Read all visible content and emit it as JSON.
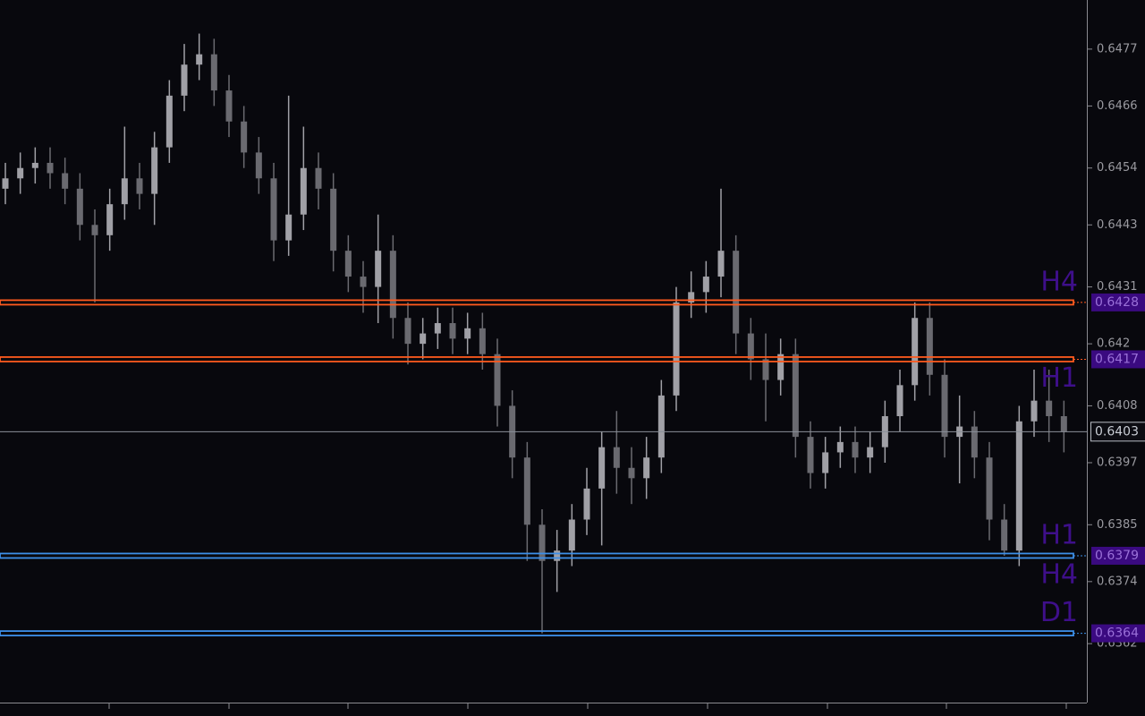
{
  "chart_data": {
    "type": "candlestick",
    "ylim": [
      0.63506,
      0.64865
    ],
    "yticks": [
      0.6477,
      0.6466,
      0.6454,
      0.6443,
      0.6431,
      0.642,
      0.6408,
      0.6397,
      0.6385,
      0.6374,
      0.6362
    ],
    "up_color": "#a0a0a6",
    "down_color": "#6a6a70",
    "open": [
      0.645,
      0.6452,
      0.6454,
      0.6455,
      0.6453,
      0.645,
      0.6443,
      0.6441,
      0.6447,
      0.6452,
      0.6449,
      0.6458,
      0.6468,
      0.6474,
      0.6476,
      0.6469,
      0.6463,
      0.6457,
      0.6452,
      0.644,
      0.6445,
      0.6454,
      0.645,
      0.6438,
      0.6433,
      0.6431,
      0.6438,
      0.6425,
      0.642,
      0.6422,
      0.6424,
      0.6421,
      0.6423,
      0.6418,
      0.6408,
      0.6398,
      0.6385,
      0.6378,
      0.638,
      0.6386,
      0.6392,
      0.64,
      0.6396,
      0.6394,
      0.6398,
      0.641,
      0.6428,
      0.643,
      0.6433,
      0.6438,
      0.6422,
      0.6417,
      0.6413,
      0.6418,
      0.6402,
      0.6395,
      0.6399,
      0.6401,
      0.6398,
      0.64,
      0.6406,
      0.6412,
      0.6425,
      0.6414,
      0.6402,
      0.6404,
      0.6398,
      0.6386,
      0.638,
      0.6405,
      0.6409,
      0.6406
    ],
    "high": [
      0.6455,
      0.6457,
      0.6458,
      0.6458,
      0.6456,
      0.6453,
      0.6446,
      0.645,
      0.6462,
      0.6455,
      0.6461,
      0.6471,
      0.6478,
      0.648,
      0.6479,
      0.6472,
      0.6466,
      0.646,
      0.6455,
      0.6468,
      0.6462,
      0.6457,
      0.6453,
      0.6441,
      0.6436,
      0.6445,
      0.6441,
      0.6428,
      0.6425,
      0.6427,
      0.6427,
      0.6426,
      0.6426,
      0.6421,
      0.6411,
      0.6401,
      0.6388,
      0.6384,
      0.6389,
      0.6396,
      0.6403,
      0.6407,
      0.64,
      0.6402,
      0.6413,
      0.6431,
      0.6434,
      0.6436,
      0.645,
      0.6441,
      0.6425,
      0.6422,
      0.6421,
      0.6421,
      0.6405,
      0.6402,
      0.6404,
      0.6404,
      0.6403,
      0.6409,
      0.6415,
      0.6428,
      0.6428,
      0.6417,
      0.641,
      0.6407,
      0.6401,
      0.6389,
      0.6408,
      0.6415,
      0.6415,
      0.6409
    ],
    "low": [
      0.6447,
      0.6449,
      0.6451,
      0.645,
      0.6447,
      0.644,
      0.6428,
      0.6438,
      0.6444,
      0.6446,
      0.6443,
      0.6455,
      0.6465,
      0.6471,
      0.6466,
      0.646,
      0.6454,
      0.6449,
      0.6436,
      0.6437,
      0.6442,
      0.6446,
      0.6434,
      0.643,
      0.6426,
      0.6424,
      0.6421,
      0.6416,
      0.6417,
      0.6419,
      0.6418,
      0.6418,
      0.6415,
      0.6404,
      0.6394,
      0.6378,
      0.6364,
      0.6372,
      0.6377,
      0.6383,
      0.6381,
      0.6391,
      0.6389,
      0.639,
      0.6395,
      0.6407,
      0.6425,
      0.6426,
      0.6429,
      0.6418,
      0.6413,
      0.6405,
      0.641,
      0.6398,
      0.6392,
      0.6392,
      0.6396,
      0.6395,
      0.6395,
      0.6397,
      0.6403,
      0.6409,
      0.641,
      0.6398,
      0.6393,
      0.6394,
      0.6382,
      0.6379,
      0.6377,
      0.6402,
      0.6401,
      0.6399
    ],
    "close": [
      0.6452,
      0.6454,
      0.6455,
      0.6453,
      0.645,
      0.6443,
      0.6441,
      0.6447,
      0.6452,
      0.6449,
      0.6458,
      0.6468,
      0.6474,
      0.6476,
      0.6469,
      0.6463,
      0.6457,
      0.6452,
      0.644,
      0.6445,
      0.6454,
      0.645,
      0.6438,
      0.6433,
      0.6431,
      0.6438,
      0.6425,
      0.642,
      0.6422,
      0.6424,
      0.6421,
      0.6423,
      0.6418,
      0.6408,
      0.6398,
      0.6385,
      0.6378,
      0.638,
      0.6386,
      0.6392,
      0.64,
      0.6396,
      0.6394,
      0.6398,
      0.641,
      0.6428,
      0.643,
      0.6433,
      0.6438,
      0.6422,
      0.6417,
      0.6413,
      0.6418,
      0.6402,
      0.6395,
      0.6399,
      0.6401,
      0.6398,
      0.64,
      0.6406,
      0.6412,
      0.6425,
      0.6414,
      0.6402,
      0.6404,
      0.6398,
      0.6386,
      0.638,
      0.6405,
      0.6409,
      0.6406,
      0.6403
    ],
    "levels": [
      {
        "price": 0.6428,
        "color": "#ff5a1e",
        "above": "H4"
      },
      {
        "price": 0.6417,
        "color": "#ff5a1e",
        "below": "H1"
      },
      {
        "price": 0.6379,
        "color": "#3d8fe8",
        "above": "H1",
        "below": "H4"
      },
      {
        "price": 0.6364,
        "color": "#3d8fe8",
        "above": "D1"
      }
    ],
    "current_price": 0.6403
  }
}
